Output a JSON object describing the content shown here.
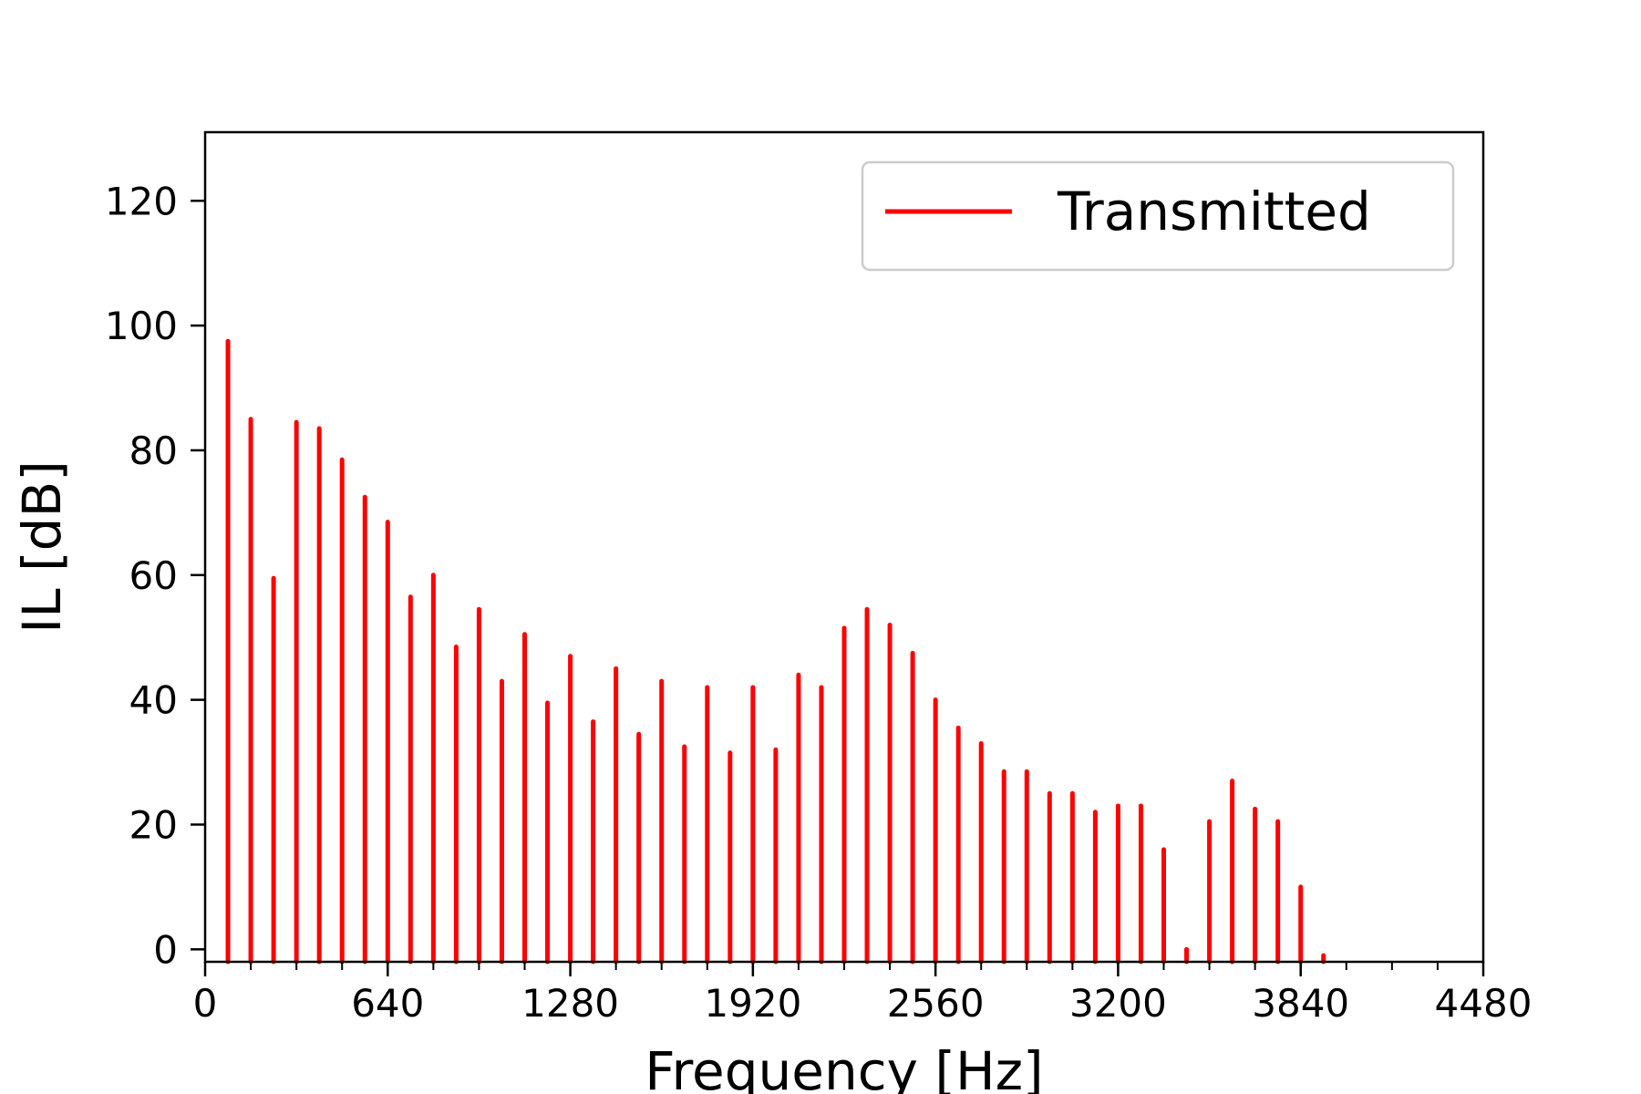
{
  "chart_data": {
    "type": "bar",
    "title": "",
    "xlabel": "Frequency [Hz]",
    "ylabel": "IL [dB]",
    "xlim": [
      0,
      4480
    ],
    "ylim": [
      -2,
      131
    ],
    "xticks": [
      0,
      640,
      1280,
      1920,
      2560,
      3200,
      3840,
      4480
    ],
    "xtick_labels": [
      "0",
      "640",
      "1280",
      "1920",
      "2560",
      "3200",
      "3840",
      "4480"
    ],
    "xminor_step": 160,
    "yticks": [
      0,
      20,
      40,
      60,
      80,
      100,
      120
    ],
    "ytick_labels": [
      "0",
      "20",
      "40",
      "60",
      "80",
      "100",
      "120"
    ],
    "grid": false,
    "legend_position": "top-right",
    "series": [
      {
        "name": "Transmitted",
        "color": "#ff0000",
        "x": [
          80,
          160,
          240,
          320,
          400,
          480,
          560,
          640,
          720,
          800,
          880,
          960,
          1040,
          1120,
          1200,
          1280,
          1360,
          1440,
          1520,
          1600,
          1680,
          1760,
          1840,
          1920,
          2000,
          2080,
          2160,
          2240,
          2320,
          2400,
          2480,
          2560,
          2640,
          2720,
          2800,
          2880,
          2960,
          3040,
          3120,
          3200,
          3280,
          3360,
          3440,
          3520,
          3600,
          3680,
          3760,
          3840,
          3920
        ],
        "values": [
          97.5,
          85,
          59.5,
          84.5,
          83.5,
          78.5,
          72.5,
          68.5,
          56.5,
          60,
          48.5,
          54.5,
          43,
          50.5,
          39.5,
          47,
          36.5,
          45,
          34.5,
          43,
          32.5,
          42,
          31.5,
          42,
          32,
          44,
          42,
          51.5,
          54.5,
          52,
          47.5,
          40,
          35.5,
          33,
          28.5,
          28.5,
          25,
          25,
          22,
          23,
          23,
          16,
          0,
          20.5,
          27,
          22.5,
          20.5,
          10,
          -1
        ]
      }
    ]
  }
}
